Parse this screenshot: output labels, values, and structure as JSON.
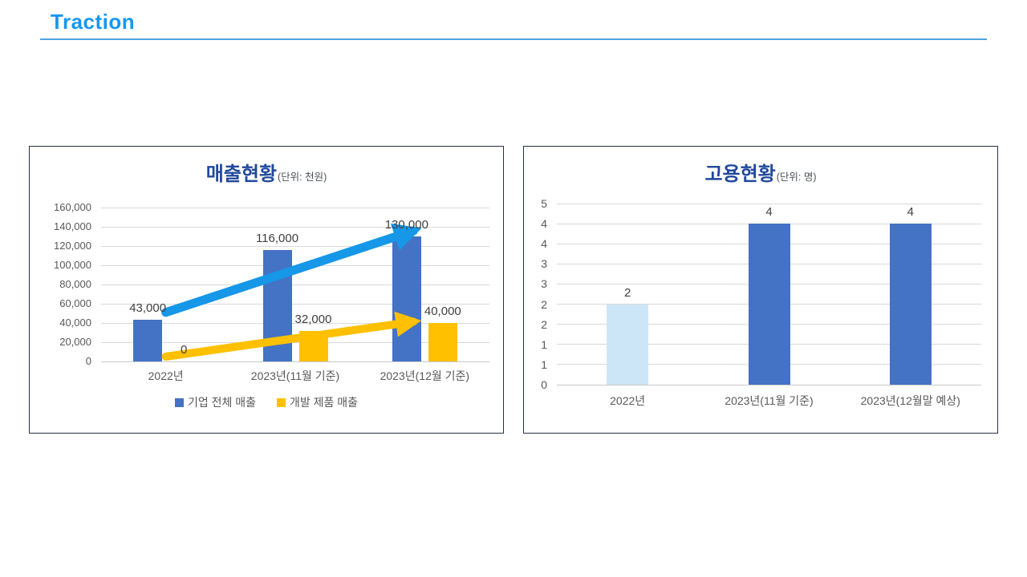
{
  "page": {
    "title": "Traction",
    "colors": {
      "accent": "#1697F0",
      "title_rule": "#4FA3DB",
      "chart_title": "#21489B",
      "panel_border": "#273142",
      "gridline": "#D9D9D9",
      "tick_text": "#595959",
      "data_label_text": "#3F3F3F"
    }
  },
  "chart_data": [
    {
      "type": "bar",
      "title": "매출현황",
      "unit_label": "(단위: 천원)",
      "categories": [
        "2022년",
        "2023년(11월 기준)",
        "2023년(12월 기준)"
      ],
      "series": [
        {
          "name": "기업 전체 매출",
          "color": "#4472C4",
          "values": [
            43000,
            116000,
            130000
          ],
          "data_labels": [
            "43,000",
            "116,000",
            "130,000"
          ]
        },
        {
          "name": "개발 제품 매출",
          "color": "#FFC000",
          "values": [
            0,
            32000,
            40000
          ],
          "data_labels": [
            "0",
            "32,000",
            "40,000"
          ]
        }
      ],
      "ylim": [
        0,
        160000
      ],
      "y_tick_labels_bottom_to_top": [
        "0",
        "20,000",
        "40,000",
        "60,000",
        "80,000",
        "100,000",
        "120,000",
        "140,000",
        "160,000"
      ],
      "grid": true,
      "legend_position": "bottom",
      "annotations": [
        {
          "type": "arrow",
          "name": "total-revenue-trend-arrow",
          "color": "#1697E8",
          "stroke": 11,
          "from": {
            "category": 0,
            "value": 51000
          },
          "to": {
            "category": 2,
            "value": 140000
          }
        },
        {
          "type": "arrow",
          "name": "product-revenue-trend-arrow",
          "color": "#FFC000",
          "stroke": 10,
          "from": {
            "category": 0,
            "value": 5000
          },
          "to": {
            "category": 2,
            "value": 45500
          }
        }
      ]
    },
    {
      "type": "bar",
      "title": "고용현황",
      "unit_label": "(단위: 명)",
      "categories": [
        "2022년",
        "2023년(11월 기준)",
        "2023년(12월말 예상)"
      ],
      "series": [
        {
          "colors": [
            "#CDE6F7",
            "#4472C4",
            "#4472C4"
          ],
          "values": [
            2,
            4,
            4
          ],
          "data_labels": [
            "2",
            "4",
            "4"
          ]
        }
      ],
      "ylim": [
        0,
        4.5
      ],
      "y_tick_labels_bottom_to_top": [
        "0",
        "1",
        "1",
        "2",
        "2",
        "3",
        "3",
        "4",
        "4",
        "5"
      ],
      "grid": true,
      "legend_position": "none",
      "annotations": []
    }
  ]
}
